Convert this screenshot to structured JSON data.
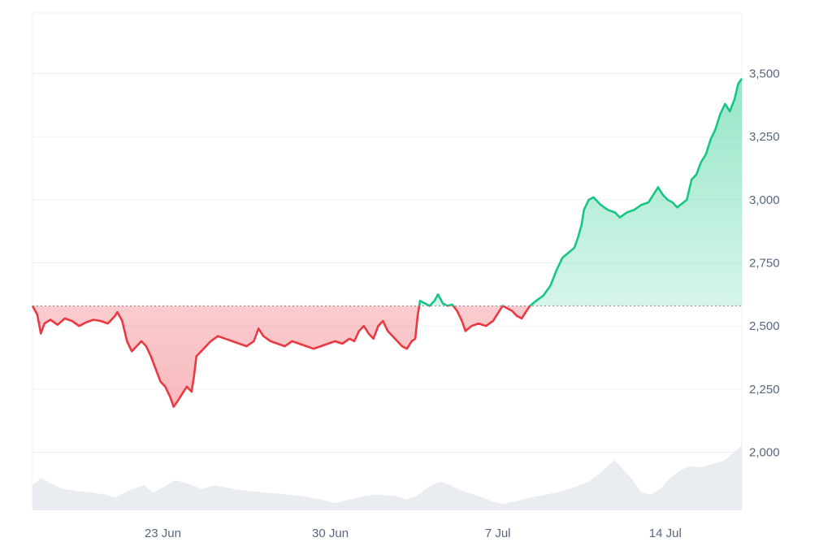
{
  "chart_data": {
    "type": "area",
    "y_ticks": [
      "2,000",
      "2,250",
      "2,500",
      "2,750",
      "3,000",
      "3,250",
      "3,500"
    ],
    "y_tick_values": [
      2000,
      2250,
      2500,
      2750,
      3000,
      3250,
      3500
    ],
    "ylim": [
      1770,
      3740
    ],
    "x_ticks": [
      {
        "label": "23 Jun",
        "day": 23
      },
      {
        "label": "30 Jun",
        "day": 30
      },
      {
        "label": "7 Jul",
        "day": 37
      },
      {
        "label": "14 Jul",
        "day": 44
      }
    ],
    "x_range_days": [
      17.55,
      47.2
    ],
    "baseline": 2580,
    "grid": true,
    "colors": {
      "up": "#16c784",
      "down": "#ea3943",
      "up_fill": "#16c784",
      "down_fill": "#ea3943",
      "volume": "#e9ecf1",
      "grid": "#eff2f5",
      "axis_text": "#58667e",
      "baseline": "#7b8494"
    },
    "price_series": {
      "name": "",
      "points": [
        [
          17.55,
          2580
        ],
        [
          17.75,
          2545
        ],
        [
          17.9,
          2470
        ],
        [
          18.05,
          2510
        ],
        [
          18.3,
          2525
        ],
        [
          18.6,
          2505
        ],
        [
          18.9,
          2530
        ],
        [
          19.2,
          2520
        ],
        [
          19.5,
          2500
        ],
        [
          19.8,
          2515
        ],
        [
          20.1,
          2525
        ],
        [
          20.4,
          2520
        ],
        [
          20.7,
          2510
        ],
        [
          21.0,
          2540
        ],
        [
          21.1,
          2555
        ],
        [
          21.3,
          2520
        ],
        [
          21.5,
          2440
        ],
        [
          21.7,
          2400
        ],
        [
          21.9,
          2420
        ],
        [
          22.1,
          2440
        ],
        [
          22.3,
          2420
        ],
        [
          22.5,
          2380
        ],
        [
          22.7,
          2330
        ],
        [
          22.9,
          2280
        ],
        [
          23.1,
          2260
        ],
        [
          23.3,
          2220
        ],
        [
          23.45,
          2180
        ],
        [
          23.6,
          2200
        ],
        [
          23.8,
          2230
        ],
        [
          24.0,
          2260
        ],
        [
          24.2,
          2240
        ],
        [
          24.3,
          2300
        ],
        [
          24.4,
          2380
        ],
        [
          24.6,
          2400
        ],
        [
          24.8,
          2420
        ],
        [
          25.0,
          2440
        ],
        [
          25.3,
          2460
        ],
        [
          25.6,
          2450
        ],
        [
          25.9,
          2440
        ],
        [
          26.2,
          2430
        ],
        [
          26.5,
          2420
        ],
        [
          26.8,
          2440
        ],
        [
          27.0,
          2490
        ],
        [
          27.2,
          2460
        ],
        [
          27.5,
          2440
        ],
        [
          27.8,
          2430
        ],
        [
          28.1,
          2420
        ],
        [
          28.4,
          2440
        ],
        [
          28.7,
          2430
        ],
        [
          29.0,
          2420
        ],
        [
          29.3,
          2410
        ],
        [
          29.6,
          2420
        ],
        [
          29.9,
          2430
        ],
        [
          30.2,
          2440
        ],
        [
          30.5,
          2430
        ],
        [
          30.8,
          2450
        ],
        [
          31.0,
          2440
        ],
        [
          31.2,
          2480
        ],
        [
          31.4,
          2500
        ],
        [
          31.6,
          2470
        ],
        [
          31.8,
          2450
        ],
        [
          32.0,
          2500
        ],
        [
          32.2,
          2520
        ],
        [
          32.4,
          2480
        ],
        [
          32.6,
          2460
        ],
        [
          32.8,
          2440
        ],
        [
          33.0,
          2420
        ],
        [
          33.2,
          2410
        ],
        [
          33.4,
          2440
        ],
        [
          33.55,
          2450
        ],
        [
          33.65,
          2540
        ],
        [
          33.75,
          2600
        ],
        [
          33.95,
          2590
        ],
        [
          34.15,
          2580
        ],
        [
          34.35,
          2600
        ],
        [
          34.5,
          2625
        ],
        [
          34.7,
          2590
        ],
        [
          34.9,
          2580
        ],
        [
          35.1,
          2585
        ],
        [
          35.3,
          2560
        ],
        [
          35.5,
          2520
        ],
        [
          35.65,
          2480
        ],
        [
          35.9,
          2500
        ],
        [
          36.2,
          2510
        ],
        [
          36.5,
          2500
        ],
        [
          36.8,
          2520
        ],
        [
          37.0,
          2550
        ],
        [
          37.2,
          2580
        ],
        [
          37.4,
          2570
        ],
        [
          37.6,
          2560
        ],
        [
          37.8,
          2540
        ],
        [
          38.0,
          2530
        ],
        [
          38.2,
          2560
        ],
        [
          38.35,
          2580
        ],
        [
          38.6,
          2600
        ],
        [
          38.9,
          2620
        ],
        [
          39.2,
          2660
        ],
        [
          39.45,
          2720
        ],
        [
          39.7,
          2770
        ],
        [
          39.95,
          2790
        ],
        [
          40.2,
          2810
        ],
        [
          40.35,
          2850
        ],
        [
          40.5,
          2900
        ],
        [
          40.6,
          2960
        ],
        [
          40.8,
          3000
        ],
        [
          41.0,
          3010
        ],
        [
          41.3,
          2980
        ],
        [
          41.6,
          2960
        ],
        [
          41.9,
          2950
        ],
        [
          42.1,
          2930
        ],
        [
          42.4,
          2950
        ],
        [
          42.7,
          2960
        ],
        [
          43.0,
          2980
        ],
        [
          43.3,
          2990
        ],
        [
          43.5,
          3020
        ],
        [
          43.7,
          3050
        ],
        [
          43.9,
          3020
        ],
        [
          44.1,
          3000
        ],
        [
          44.3,
          2990
        ],
        [
          44.5,
          2970
        ],
        [
          44.7,
          2985
        ],
        [
          44.9,
          3000
        ],
        [
          45.1,
          3080
        ],
        [
          45.3,
          3100
        ],
        [
          45.5,
          3150
        ],
        [
          45.7,
          3180
        ],
        [
          45.9,
          3240
        ],
        [
          46.1,
          3280
        ],
        [
          46.3,
          3340
        ],
        [
          46.5,
          3380
        ],
        [
          46.7,
          3350
        ],
        [
          46.9,
          3400
        ],
        [
          47.05,
          3460
        ],
        [
          47.2,
          3480
        ]
      ]
    },
    "volume_series": {
      "name": "",
      "ylim": [
        0,
        1
      ],
      "points": [
        [
          17.55,
          0.35
        ],
        [
          17.9,
          0.45
        ],
        [
          18.3,
          0.38
        ],
        [
          18.8,
          0.3
        ],
        [
          19.4,
          0.27
        ],
        [
          20.0,
          0.25
        ],
        [
          20.6,
          0.22
        ],
        [
          21.0,
          0.18
        ],
        [
          21.6,
          0.28
        ],
        [
          22.2,
          0.35
        ],
        [
          22.6,
          0.25
        ],
        [
          23.0,
          0.32
        ],
        [
          23.5,
          0.42
        ],
        [
          24.0,
          0.38
        ],
        [
          24.6,
          0.3
        ],
        [
          25.2,
          0.35
        ],
        [
          25.9,
          0.3
        ],
        [
          26.6,
          0.27
        ],
        [
          27.2,
          0.25
        ],
        [
          28.0,
          0.23
        ],
        [
          28.8,
          0.2
        ],
        [
          29.6,
          0.15
        ],
        [
          30.2,
          0.1
        ],
        [
          30.8,
          0.15
        ],
        [
          31.4,
          0.2
        ],
        [
          32.0,
          0.22
        ],
        [
          32.7,
          0.2
        ],
        [
          33.2,
          0.15
        ],
        [
          33.6,
          0.2
        ],
        [
          34.2,
          0.35
        ],
        [
          34.6,
          0.4
        ],
        [
          35.0,
          0.35
        ],
        [
          35.6,
          0.26
        ],
        [
          36.2,
          0.2
        ],
        [
          36.8,
          0.12
        ],
        [
          37.2,
          0.09
        ],
        [
          37.8,
          0.13
        ],
        [
          38.4,
          0.18
        ],
        [
          39.0,
          0.22
        ],
        [
          39.6,
          0.26
        ],
        [
          40.2,
          0.32
        ],
        [
          40.8,
          0.4
        ],
        [
          41.2,
          0.5
        ],
        [
          41.6,
          0.62
        ],
        [
          41.9,
          0.7
        ],
        [
          42.3,
          0.55
        ],
        [
          42.7,
          0.4
        ],
        [
          43.0,
          0.25
        ],
        [
          43.4,
          0.22
        ],
        [
          43.8,
          0.3
        ],
        [
          44.2,
          0.45
        ],
        [
          44.6,
          0.55
        ],
        [
          45.0,
          0.62
        ],
        [
          45.5,
          0.6
        ],
        [
          46.0,
          0.65
        ],
        [
          46.5,
          0.7
        ],
        [
          47.0,
          0.85
        ],
        [
          47.2,
          0.9
        ]
      ]
    }
  }
}
